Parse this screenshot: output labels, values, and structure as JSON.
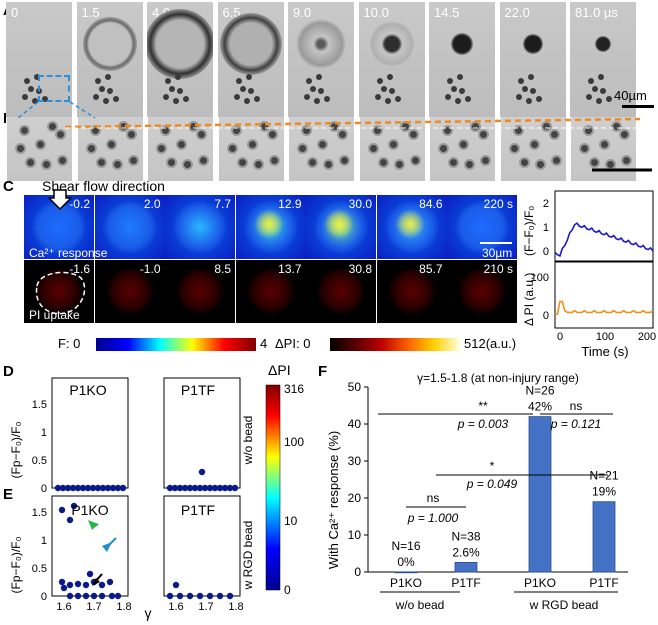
{
  "panels": {
    "A": "A",
    "B": "B",
    "C": "C",
    "D": "D",
    "E": "E",
    "F": "F"
  },
  "panel_a": {
    "times": [
      "0",
      "1.5",
      "4.0",
      "6.5",
      "9.0",
      "10.0",
      "14.5",
      "22.0",
      "81.0 µs"
    ],
    "scale": "40µm"
  },
  "panel_c": {
    "shear_label": "Shear flow direction",
    "ca_times": [
      "-0.2",
      "2.0",
      "7.7",
      "12.9",
      "30.0",
      "84.6",
      "220 s"
    ],
    "ca_label": "Ca²⁺ response",
    "ca_scale": "30µm",
    "pi_times": [
      "-1.6",
      "-1.0",
      "8.5",
      "13.7",
      "30.8",
      "85.7",
      "210 s"
    ],
    "pi_label": "PI uptake",
    "cbar_f_label": "F: 0",
    "cbar_f_max": "4",
    "cbar_pi_label": "ΔPI: 0",
    "cbar_pi_max": "512(a.u.)",
    "ylabel_top": "(F−F₀)/F₀",
    "ylabel_bottom": "Δ PI (a.u.)",
    "xlabel": "Time (s)",
    "top_yticks": [
      "0",
      "1",
      "2"
    ],
    "bottom_yticks": [
      "0",
      "100"
    ],
    "xticks": [
      "0",
      "100",
      "200"
    ]
  },
  "panel_de": {
    "ylabel": "(Fp−F₀)/F₀",
    "xlabel": "γ",
    "xticks": [
      "1.6",
      "1.7",
      "1.8"
    ],
    "d_yticks": [
      "0",
      "0.5",
      "1",
      "1.5"
    ],
    "e_yticks": [
      "0",
      "0.5",
      "1",
      "1.5"
    ],
    "D_left": "P1KO",
    "D_right": "P1TF",
    "E_left": "P1KO",
    "E_right": "P1TF",
    "side_D": "w/o bead",
    "side_E": "w RGD bead",
    "cbar_title": "ΔPI",
    "cbar_ticks": [
      "316",
      "100",
      "10",
      "0"
    ]
  },
  "chart_data": {
    "type": "bar",
    "title": "γ=1.5-1.8 (at non-injury range)",
    "ylabel": "With Ca²⁺ response (%)",
    "categories": [
      "P1KO",
      "P1TF",
      "P1KO",
      "P1TF"
    ],
    "groups": [
      "w/o bead",
      "w RGD bead"
    ],
    "values": [
      0,
      2.6,
      42,
      19
    ],
    "value_labels": [
      "0%",
      "2.6%",
      "42%",
      "19%"
    ],
    "n_labels": [
      "N=16",
      "N=38",
      "N=26",
      "N=21"
    ],
    "yticks": [
      "0",
      "10",
      "20",
      "30",
      "40",
      "50"
    ],
    "ylim": [
      0,
      50
    ],
    "stats": [
      {
        "sig": "ns",
        "p": "p = 1.000"
      },
      {
        "sig": "**",
        "p": "p = 0.003"
      },
      {
        "sig": "ns",
        "p": "p = 0.121"
      },
      {
        "sig": "*",
        "p": "p = 0.049"
      }
    ],
    "bar_color": "#4472c4"
  }
}
